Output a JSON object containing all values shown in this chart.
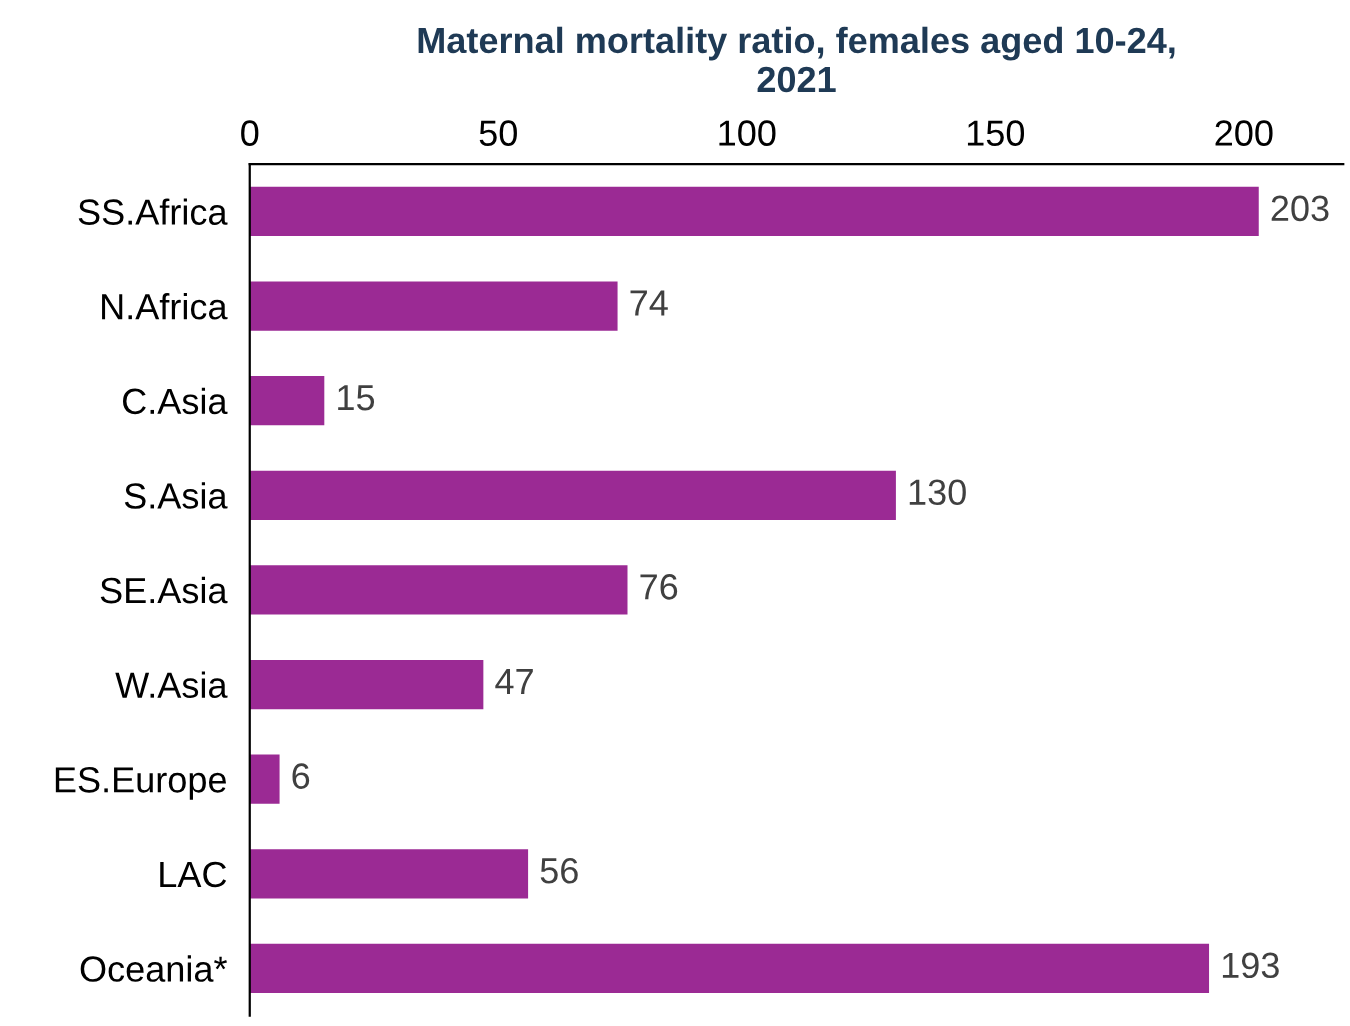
{
  "chart_data": {
    "type": "bar",
    "orientation": "horizontal",
    "title": "Maternal mortality ratio, females aged 10-24,\n2021",
    "categories": [
      "SS.Africa",
      "N.Africa",
      "C.Asia",
      "S.Asia",
      "SE.Asia",
      "W.Asia",
      "ES.Europe",
      "LAC",
      "Oceania*"
    ],
    "values": [
      203,
      74,
      15,
      130,
      76,
      47,
      6,
      56,
      193
    ],
    "color": "#9b2a94",
    "xlim": [
      0,
      220
    ],
    "xticks": [
      0,
      50,
      100,
      150,
      200
    ],
    "data_labels": true,
    "grid": false
  }
}
